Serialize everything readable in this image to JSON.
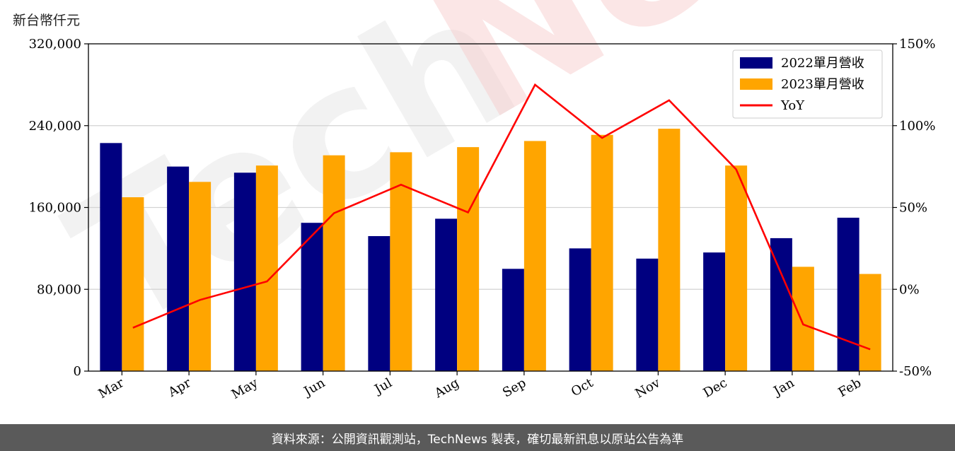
{
  "unit_label": "新台幣仟元",
  "footer": "資料來源：公開資訊觀測站，TechNews 製表，確切最新訊息以原站公告為準",
  "watermark": {
    "part1": "Tech",
    "part2": "News"
  },
  "colors": {
    "bar2022": "#000080",
    "bar2023": "#FFA500",
    "yoy": "#FF0000",
    "grid": "#d3d3d3",
    "footer_bg": "#5a5a5a"
  },
  "chart_data": {
    "type": "bar",
    "categories": [
      "Mar",
      "Apr",
      "May",
      "Jun",
      "Jul",
      "Aug",
      "Sep",
      "Oct",
      "Nov",
      "Dec",
      "Jan",
      "Feb"
    ],
    "series": [
      {
        "name": "2022單月營收",
        "values": [
          223000,
          200000,
          194000,
          145000,
          132000,
          149000,
          100000,
          120000,
          110000,
          116000,
          130000,
          150000
        ]
      },
      {
        "name": "2023單月營收",
        "values": [
          170000,
          185000,
          201000,
          211000,
          214000,
          219000,
          225000,
          231000,
          237000,
          201000,
          102000,
          95000
        ]
      },
      {
        "name": "YoY",
        "axis": "right",
        "type": "line",
        "values": [
          -23.5,
          -6.5,
          4.8,
          46.5,
          63.9,
          47.0,
          125.0,
          92.5,
          115.5,
          73.3,
          -21.5,
          -36.7
        ]
      }
    ],
    "y_left": {
      "lim": [
        0,
        320000
      ],
      "ticks": [
        0,
        80000,
        160000,
        240000,
        320000
      ],
      "tick_labels": [
        "0",
        "80,000",
        "160,000",
        "240,000",
        "320,000"
      ]
    },
    "y_right": {
      "lim": [
        -50,
        150
      ],
      "ticks": [
        -50,
        0,
        50,
        100,
        150
      ],
      "tick_labels": [
        "-50%",
        "0%",
        "50%",
        "100%",
        "150%"
      ]
    },
    "grid": true,
    "legend_position": "top-right"
  }
}
